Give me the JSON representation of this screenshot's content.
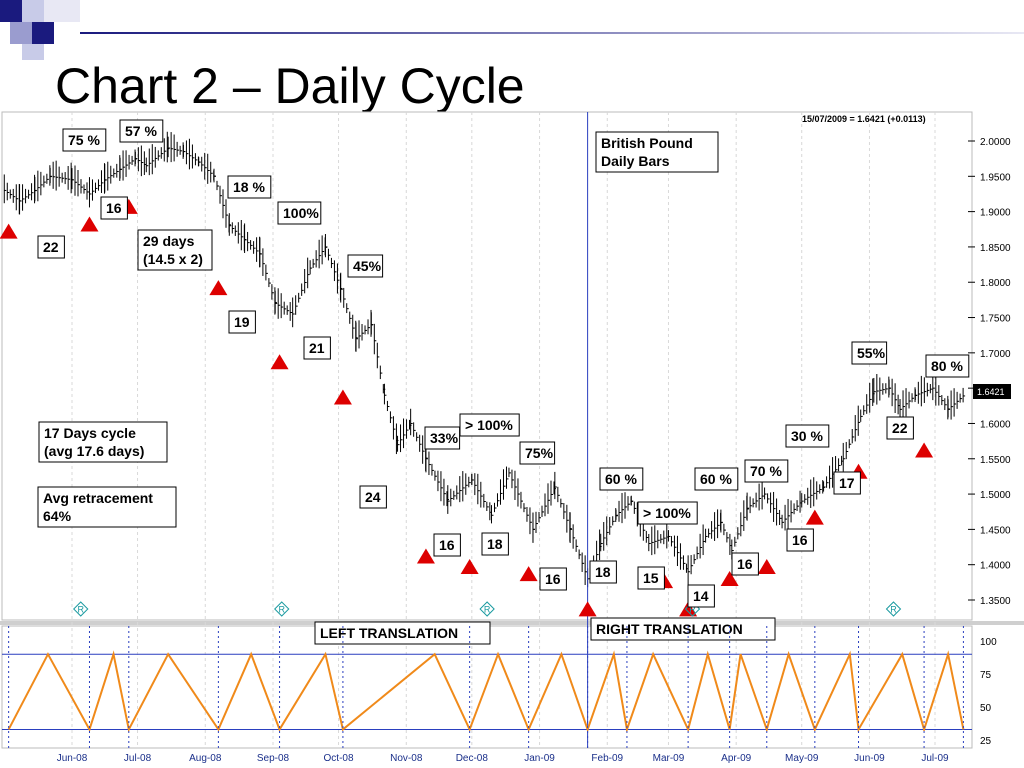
{
  "slide": {
    "title": "Chart 2 – Daily Cycle"
  },
  "chart_data": {
    "type": "line",
    "title": "British Pound\nDaily Bars",
    "quote": "15/07/2009 = 1.6421 (+0.0113)",
    "last_price": "1.6421",
    "ylim": [
      1.32,
      2.04
    ],
    "y_ticks": [
      "2.0000",
      "1.9500",
      "1.9000",
      "1.8500",
      "1.8000",
      "1.7500",
      "1.7000",
      "1.6500",
      "1.6000",
      "1.5500",
      "1.5000",
      "1.4500",
      "1.4000",
      "1.3500"
    ],
    "x_months": [
      "Jun-08",
      "Jul-08",
      "Aug-08",
      "Sep-08",
      "Oct-08",
      "Nov-08",
      "Dec-08",
      "Jan-09",
      "Feb-09",
      "Mar-09",
      "Apr-09",
      "May-09",
      "Jun-09",
      "Jul-09"
    ],
    "price_path": [
      {
        "d": "2008-05-01",
        "v": 1.93
      },
      {
        "d": "2008-05-08",
        "v": 1.915
      },
      {
        "d": "2008-05-15",
        "v": 1.93
      },
      {
        "d": "2008-05-22",
        "v": 1.95
      },
      {
        "d": "2008-06-01",
        "v": 1.945
      },
      {
        "d": "2008-06-09",
        "v": 1.925
      },
      {
        "d": "2008-06-16",
        "v": 1.945
      },
      {
        "d": "2008-06-23",
        "v": 1.96
      },
      {
        "d": "2008-06-30",
        "v": 1.975
      },
      {
        "d": "2008-07-05",
        "v": 1.965
      },
      {
        "d": "2008-07-15",
        "v": 1.99
      },
      {
        "d": "2008-07-22",
        "v": 1.985
      },
      {
        "d": "2008-07-29",
        "v": 1.97
      },
      {
        "d": "2008-08-05",
        "v": 1.95
      },
      {
        "d": "2008-08-12",
        "v": 1.88
      },
      {
        "d": "2008-08-19",
        "v": 1.86
      },
      {
        "d": "2008-08-26",
        "v": 1.84
      },
      {
        "d": "2008-09-02",
        "v": 1.77
      },
      {
        "d": "2008-09-10",
        "v": 1.755
      },
      {
        "d": "2008-09-18",
        "v": 1.82
      },
      {
        "d": "2008-09-25",
        "v": 1.85
      },
      {
        "d": "2008-10-02",
        "v": 1.79
      },
      {
        "d": "2008-10-09",
        "v": 1.72
      },
      {
        "d": "2008-10-16",
        "v": 1.74
      },
      {
        "d": "2008-10-22",
        "v": 1.64
      },
      {
        "d": "2008-10-28",
        "v": 1.57
      },
      {
        "d": "2008-11-03",
        "v": 1.6
      },
      {
        "d": "2008-11-10",
        "v": 1.55
      },
      {
        "d": "2008-11-20",
        "v": 1.49
      },
      {
        "d": "2008-12-01",
        "v": 1.52
      },
      {
        "d": "2008-12-10",
        "v": 1.47
      },
      {
        "d": "2008-12-18",
        "v": 1.53
      },
      {
        "d": "2008-12-29",
        "v": 1.45
      },
      {
        "d": "2009-01-08",
        "v": 1.51
      },
      {
        "d": "2009-01-15",
        "v": 1.45
      },
      {
        "d": "2009-01-23",
        "v": 1.38
      },
      {
        "d": "2009-01-29",
        "v": 1.43
      },
      {
        "d": "2009-02-05",
        "v": 1.47
      },
      {
        "d": "2009-02-12",
        "v": 1.49
      },
      {
        "d": "2009-02-20",
        "v": 1.43
      },
      {
        "d": "2009-03-01",
        "v": 1.44
      },
      {
        "d": "2009-03-10",
        "v": 1.39
      },
      {
        "d": "2009-03-18",
        "v": 1.44
      },
      {
        "d": "2009-03-25",
        "v": 1.46
      },
      {
        "d": "2009-03-30",
        "v": 1.42
      },
      {
        "d": "2009-04-06",
        "v": 1.48
      },
      {
        "d": "2009-04-14",
        "v": 1.5
      },
      {
        "d": "2009-04-22",
        "v": 1.46
      },
      {
        "d": "2009-05-01",
        "v": 1.49
      },
      {
        "d": "2009-05-11",
        "v": 1.51
      },
      {
        "d": "2009-05-20",
        "v": 1.55
      },
      {
        "d": "2009-05-28",
        "v": 1.61
      },
      {
        "d": "2009-06-03",
        "v": 1.645
      },
      {
        "d": "2009-06-10",
        "v": 1.65
      },
      {
        "d": "2009-06-15",
        "v": 1.62
      },
      {
        "d": "2009-06-22",
        "v": 1.64
      },
      {
        "d": "2009-06-30",
        "v": 1.65
      },
      {
        "d": "2009-07-07",
        "v": 1.62
      },
      {
        "d": "2009-07-15",
        "v": 1.6421
      }
    ],
    "cycle_lows": [
      {
        "d": "2008-05-03",
        "v": 1.9
      },
      {
        "d": "2008-06-09",
        "v": 1.91
      },
      {
        "d": "2008-06-27",
        "v": 1.935
      },
      {
        "d": "2008-08-07",
        "v": 1.82
      },
      {
        "d": "2008-09-04",
        "v": 1.715
      },
      {
        "d": "2008-10-03",
        "v": 1.665
      },
      {
        "d": "2008-11-10",
        "v": 1.44
      },
      {
        "d": "2008-11-30",
        "v": 1.425
      },
      {
        "d": "2008-12-27",
        "v": 1.415
      },
      {
        "d": "2009-01-23",
        "v": 1.365
      },
      {
        "d": "2009-02-27",
        "v": 1.405
      },
      {
        "d": "2009-03-10",
        "v": 1.365
      },
      {
        "d": "2009-03-29",
        "v": 1.408
      },
      {
        "d": "2009-04-15",
        "v": 1.425
      },
      {
        "d": "2009-05-07",
        "v": 1.495
      },
      {
        "d": "2009-05-27",
        "v": 1.56
      },
      {
        "d": "2009-06-26",
        "v": 1.59
      }
    ],
    "cycle_counts": [
      "22",
      "16",
      "19",
      "21",
      "24",
      "16",
      "18",
      "16",
      "18",
      "15",
      "14",
      "16",
      "16",
      "17",
      "22"
    ],
    "retracements": [
      "75 %",
      "57 %",
      "18 %",
      "100%",
      "45%",
      "33%",
      "> 100%",
      "75%",
      "60 %",
      "> 100%",
      "60 %",
      "70 %",
      "30 %",
      "55%",
      "80 %"
    ],
    "notes": [
      "29 days\n(14.5 x 2)",
      "17 Days cycle\n(avg 17.6 days)",
      "Avg retracement\n64%"
    ],
    "translations": [
      "LEFT TRANSLATION",
      "RIGHT TRANSLATION"
    ],
    "oscillator": {
      "ylim": [
        20,
        110
      ],
      "y_ticks": [
        "100",
        "75",
        "50",
        "25"
      ],
      "levels": [
        90,
        33
      ],
      "peaks": [
        {
          "d": "2008-05-21",
          "v": 90
        },
        {
          "d": "2008-06-20",
          "v": 90
        },
        {
          "d": "2008-07-15",
          "v": 90
        },
        {
          "d": "2008-08-22",
          "v": 90
        },
        {
          "d": "2008-09-25",
          "v": 90
        },
        {
          "d": "2008-11-14",
          "v": 90
        },
        {
          "d": "2008-12-13",
          "v": 90
        },
        {
          "d": "2009-01-11",
          "v": 90
        },
        {
          "d": "2009-02-04",
          "v": 90
        },
        {
          "d": "2009-02-22",
          "v": 90
        },
        {
          "d": "2009-03-19",
          "v": 90
        },
        {
          "d": "2009-04-03",
          "v": 90
        },
        {
          "d": "2009-04-25",
          "v": 90
        },
        {
          "d": "2009-05-23",
          "v": 90
        },
        {
          "d": "2009-06-16",
          "v": 90
        },
        {
          "d": "2009-07-07",
          "v": 90
        }
      ],
      "troughs": [
        {
          "d": "2008-05-03",
          "v": 33
        },
        {
          "d": "2008-06-09",
          "v": 33
        },
        {
          "d": "2008-06-27",
          "v": 33
        },
        {
          "d": "2008-08-07",
          "v": 33
        },
        {
          "d": "2008-09-04",
          "v": 33
        },
        {
          "d": "2008-10-03",
          "v": 33
        },
        {
          "d": "2008-11-30",
          "v": 33
        },
        {
          "d": "2008-12-27",
          "v": 33
        },
        {
          "d": "2009-01-23",
          "v": 33
        },
        {
          "d": "2009-02-10",
          "v": 33
        },
        {
          "d": "2009-03-10",
          "v": 33
        },
        {
          "d": "2009-03-29",
          "v": 33
        },
        {
          "d": "2009-04-15",
          "v": 33
        },
        {
          "d": "2009-05-07",
          "v": 33
        },
        {
          "d": "2009-05-27",
          "v": 33
        },
        {
          "d": "2009-06-26",
          "v": 33
        },
        {
          "d": "2009-07-14",
          "v": 33
        }
      ]
    },
    "colors": {
      "arrow": "#dd0000",
      "oscillator": "#f08a1a",
      "divider": "#2a3fbf",
      "marker": "#1a9aa0",
      "title_accent": "#1a1a7e"
    }
  }
}
